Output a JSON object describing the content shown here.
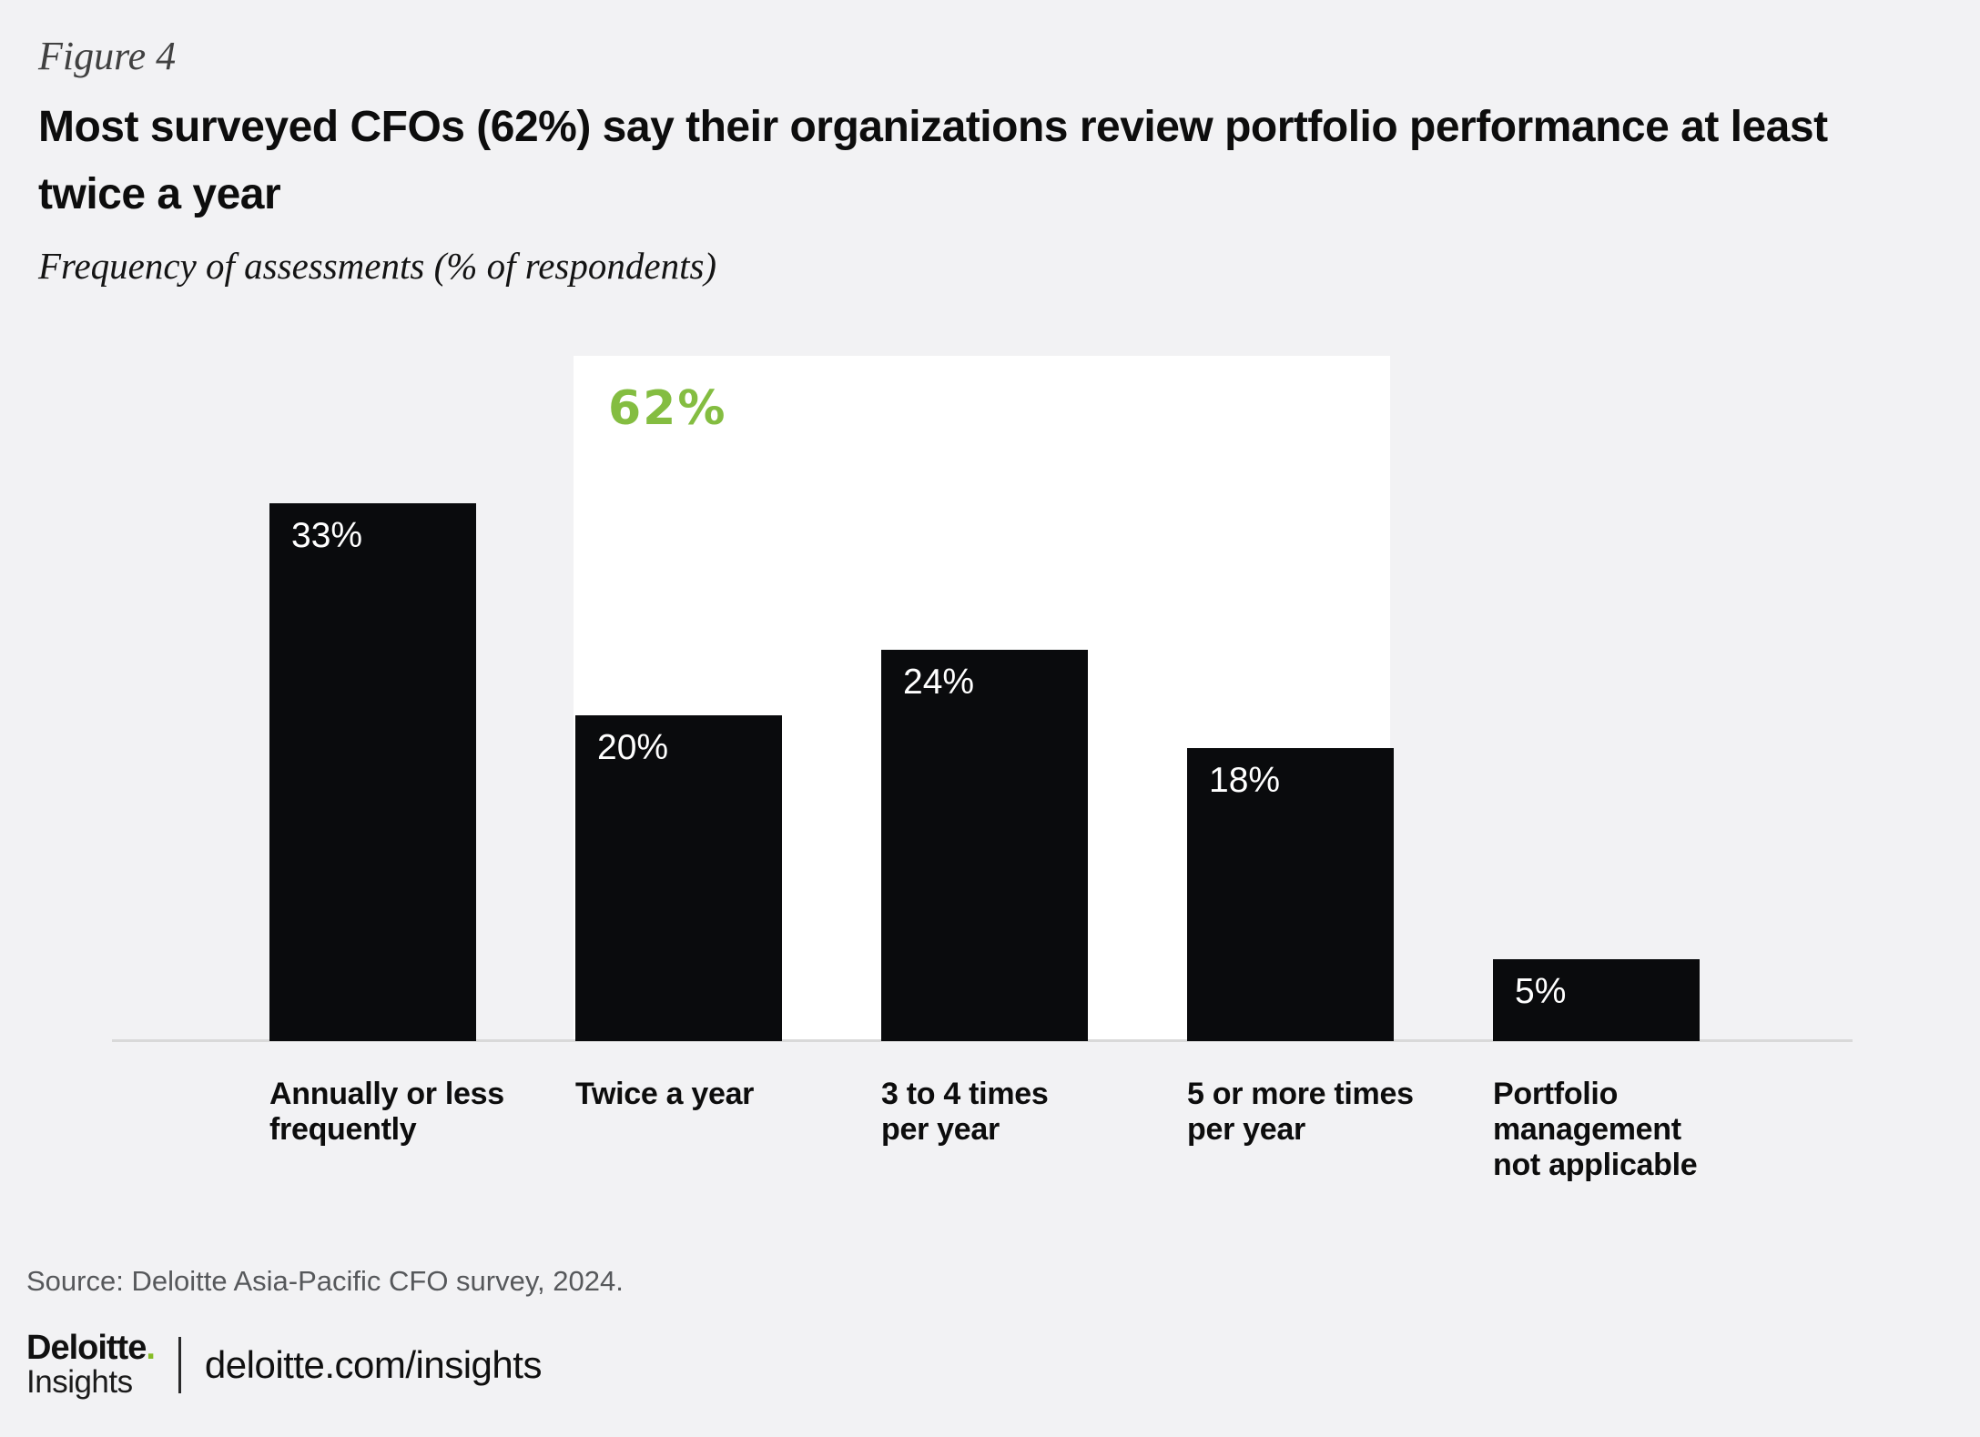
{
  "figure_label": "Figure 4",
  "title": "Most surveyed CFOs (62%) say their organizations review portfolio performance at least twice a year",
  "subtitle": "Frequency of assessments (% of respondents)",
  "chart_data": {
    "type": "bar",
    "title": "Most surveyed CFOs (62%) say their organizations review portfolio performance at least twice a year",
    "ylabel": "% of respondents",
    "categories": [
      "Annually or less\nfrequently",
      "Twice a year",
      "3 to 4 times\nper year",
      "5 or more times\nper year",
      "Portfolio\nmanagement\nnot applicable"
    ],
    "values": [
      33,
      20,
      24,
      18,
      5
    ],
    "value_labels": [
      "33%",
      "20%",
      "24%",
      "18%",
      "5%"
    ],
    "ylim": [
      0,
      42
    ],
    "grid": false,
    "legend": false,
    "bar_color": "#0a0b0d",
    "value_label_color": "#ffffff",
    "highlight": {
      "label": "62%",
      "sum_of_values": 62,
      "covers_categories": [
        "Twice a year",
        "3 to 4 times per year",
        "5 or more times per year"
      ],
      "label_color": "#84bd41",
      "box_color": "#ffffff"
    }
  },
  "source": "Source: Deloitte Asia-Pacific CFO survey, 2024.",
  "footer": {
    "brand": "Deloitte",
    "dot": ".",
    "brand_sub": "Insights",
    "url": "deloitte.com/insights",
    "dot_color": "#86bc25"
  },
  "colors": {
    "background": "#f2f2f4",
    "bar": "#0a0b0d",
    "axis_line": "#d9d9d9",
    "green": "#84bd41",
    "logo_green": "#86bc25",
    "source_text": "#56585b"
  }
}
